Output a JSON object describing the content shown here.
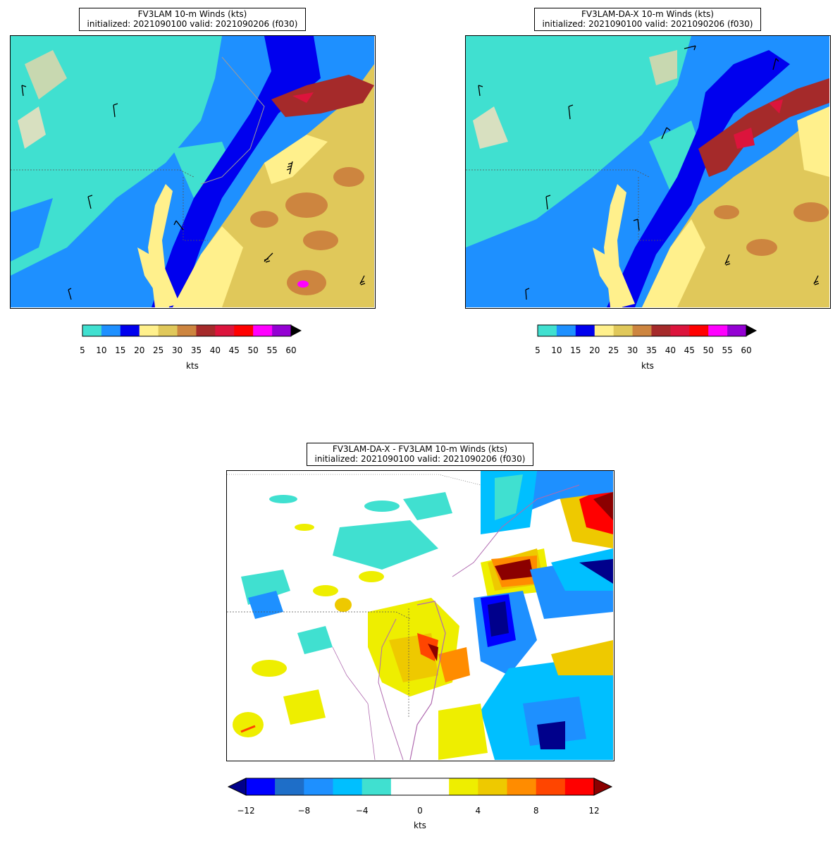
{
  "panels": [
    {
      "title_line1": "FV3LAM 10-m Winds (kts)",
      "title_line2": "initialized: 2021090100 valid: 2021090206 (f030)"
    },
    {
      "title_line1": "FV3LAM-DA-X 10-m Winds (kts)",
      "title_line2": "initialized: 2021090100 valid: 2021090206 (f030)"
    },
    {
      "title_line1": "FV3LAM-DA-X - FV3LAM 10-m Winds (kts)",
      "title_line2": "initialized: 2021090100 valid: 2021090206 (f030)"
    }
  ],
  "wind_colorbar": {
    "ticks": [
      "5",
      "10",
      "15",
      "20",
      "25",
      "30",
      "35",
      "40",
      "45",
      "50",
      "55",
      "60"
    ],
    "colors": [
      "#40e0d0",
      "#1e90ff",
      "#0000ee",
      "#fff08c",
      "#e0c85a",
      "#cd853f",
      "#a52a2a",
      "#dc143c",
      "#ff0000",
      "#ff00ff",
      "#9400d3"
    ],
    "extend_color": "#000000",
    "units": "kts"
  },
  "diff_colorbar": {
    "ticks": [
      "−12",
      "−8",
      "−4",
      "0",
      "4",
      "8",
      "12"
    ],
    "colors": [
      "#0000ff",
      "#1e6ec8",
      "#1e90ff",
      "#00bfff",
      "#40e0d0",
      "#ffffff",
      "#ffffff",
      "#eeee00",
      "#eec900",
      "#ff8c00",
      "#ff4500",
      "#ff0000"
    ],
    "extend_low_color": "#00008b",
    "extend_high_color": "#8b0000",
    "units": "kts"
  },
  "colors": {
    "land_coast": "#9b9b9b",
    "state_border": "#555555",
    "water_outline": "#b06ab0"
  }
}
